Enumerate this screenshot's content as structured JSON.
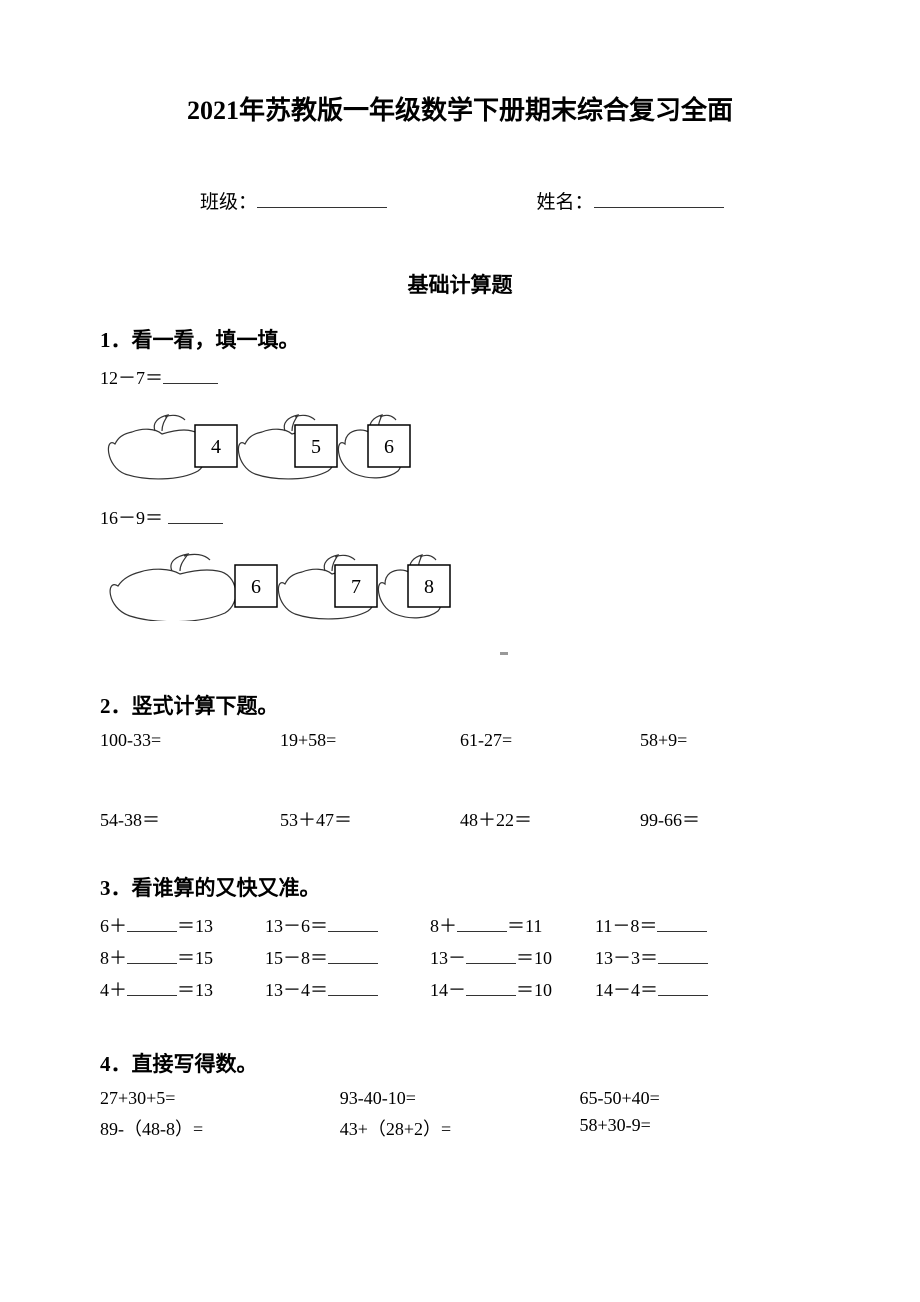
{
  "title": "2021年苏教版一年级数学下册期末综合复习全面",
  "info": {
    "class_label": "班级：",
    "name_label": "姓名："
  },
  "section_title": "基础计算题",
  "q1": {
    "heading": "1．看一看，填一填。",
    "line1": "12－7＝",
    "row1": [
      "4",
      "5",
      "6"
    ],
    "line2": "16－9＝",
    "row2": [
      "6",
      "7",
      "8"
    ],
    "apple_stroke": "#333333",
    "apple_fill": "#ffffff",
    "box_stroke": "#000000",
    "box_fontsize": 20
  },
  "q2": {
    "heading": "2．竖式计算下题。",
    "row1": [
      "100-33=",
      "19+58=",
      "61-27=",
      "58+9="
    ],
    "row2": [
      "54-38＝",
      "53＋47＝",
      "48＋22＝",
      "99-66＝"
    ]
  },
  "q3": {
    "heading": "3．看谁算的又快又准。",
    "rows": [
      {
        "a_pre": "6＋",
        "a_post": "＝13",
        "b_pre": "13－6＝",
        "c_pre": "8＋",
        "c_post": "＝11",
        "d_pre": "11－8＝"
      },
      {
        "a_pre": "8＋",
        "a_post": "＝15",
        "b_pre": "15－8＝",
        "c_pre": "13－",
        "c_post": "＝10",
        "d_pre": "13－3＝"
      },
      {
        "a_pre": "4＋",
        "a_post": "＝13",
        "b_pre": "13－4＝",
        "c_pre": "14－",
        "c_post": "＝10",
        "d_pre": "14－4＝"
      }
    ]
  },
  "q4": {
    "heading": "4．直接写得数。",
    "row1": [
      "27+30+5=",
      "93-40-10=",
      "65-50+40="
    ],
    "row2": [
      "89-（48-8）=",
      "43+（28+2）=",
      "58+30-9="
    ]
  },
  "colors": {
    "text": "#000000",
    "background": "#ffffff",
    "underline": "#333333"
  }
}
